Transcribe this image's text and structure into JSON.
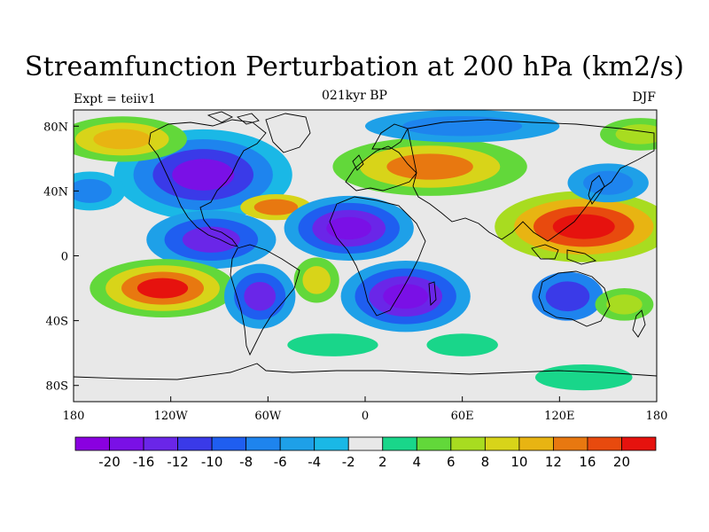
{
  "title": "Streamfunction Perturbation at 200 hPa (km2/s)",
  "subtitle_left": "Expt = teiiv1",
  "subtitle_center": "021kyr BP",
  "subtitle_right": "DJF",
  "x_ticks": [
    "180",
    "120W",
    "60W",
    "0",
    "60E",
    "120E",
    "180"
  ],
  "y_ticks": [
    "80N",
    "40N",
    "0",
    "40S",
    "80S"
  ],
  "colorbar": {
    "colors": [
      "#8a00e0",
      "#7a10e6",
      "#6a26e8",
      "#3a3ae8",
      "#1f5ef0",
      "#1e84ee",
      "#1ea0e8",
      "#1ab8e6",
      "#e8e8e8",
      "#19d68a",
      "#62d83a",
      "#a8dc20",
      "#d8d419",
      "#e8b412",
      "#e87810",
      "#e84a0e",
      "#e6120e"
    ],
    "labels": [
      "-20",
      "-16",
      "-12",
      "-10",
      "-8",
      "-6",
      "-4",
      "-2",
      "2",
      "4",
      "6",
      "8",
      "10",
      "12",
      "16",
      "20"
    ]
  },
  "field": {
    "background_level": 8,
    "blobs": [
      {
        "lon": -100,
        "lat": 50,
        "r": [
          55,
          28
        ],
        "levels": [
          7,
          5,
          3,
          1
        ]
      },
      {
        "lon": -95,
        "lat": 10,
        "r": [
          40,
          18
        ],
        "levels": [
          6,
          4,
          2
        ]
      },
      {
        "lon": -170,
        "lat": 40,
        "r": [
          22,
          12
        ],
        "levels": [
          7,
          5
        ]
      },
      {
        "lon": -150,
        "lat": 72,
        "r": [
          40,
          14
        ],
        "levels": [
          10,
          12,
          13
        ]
      },
      {
        "lon": -125,
        "lat": -20,
        "r": [
          45,
          18
        ],
        "levels": [
          10,
          12,
          14,
          16
        ]
      },
      {
        "lon": -65,
        "lat": -25,
        "r": [
          22,
          20
        ],
        "levels": [
          6,
          4,
          2
        ]
      },
      {
        "lon": -30,
        "lat": -15,
        "r": [
          14,
          14
        ],
        "levels": [
          10,
          12
        ]
      },
      {
        "lon": -55,
        "lat": 30,
        "r": [
          22,
          8
        ],
        "levels": [
          12,
          14
        ]
      },
      {
        "lon": -10,
        "lat": 17,
        "r": [
          40,
          20
        ],
        "levels": [
          6,
          4,
          2,
          1
        ]
      },
      {
        "lon": 25,
        "lat": -25,
        "r": [
          40,
          22
        ],
        "levels": [
          6,
          4,
          2,
          1
        ]
      },
      {
        "lon": 40,
        "lat": 55,
        "r": [
          60,
          18
        ],
        "levels": [
          10,
          12,
          14
        ]
      },
      {
        "lon": 60,
        "lat": 80,
        "r": [
          60,
          10
        ],
        "levels": [
          6,
          5
        ]
      },
      {
        "lon": 135,
        "lat": 18,
        "r": [
          55,
          22
        ],
        "levels": [
          11,
          13,
          15,
          16
        ]
      },
      {
        "lon": 125,
        "lat": -25,
        "r": [
          22,
          15
        ],
        "levels": [
          5,
          3
        ]
      },
      {
        "lon": 160,
        "lat": -30,
        "r": [
          18,
          10
        ],
        "levels": [
          10,
          11
        ]
      },
      {
        "lon": 150,
        "lat": 45,
        "r": [
          25,
          12
        ],
        "levels": [
          6,
          5
        ]
      },
      {
        "lon": 170,
        "lat": 75,
        "r": [
          25,
          10
        ],
        "levels": [
          10,
          11
        ]
      },
      {
        "lon": -20,
        "lat": -55,
        "r": [
          28,
          7
        ],
        "levels": [
          9
        ]
      },
      {
        "lon": 60,
        "lat": -55,
        "r": [
          22,
          7
        ],
        "levels": [
          9
        ]
      },
      {
        "lon": 135,
        "lat": -75,
        "r": [
          30,
          8
        ],
        "levels": [
          9
        ]
      }
    ]
  }
}
